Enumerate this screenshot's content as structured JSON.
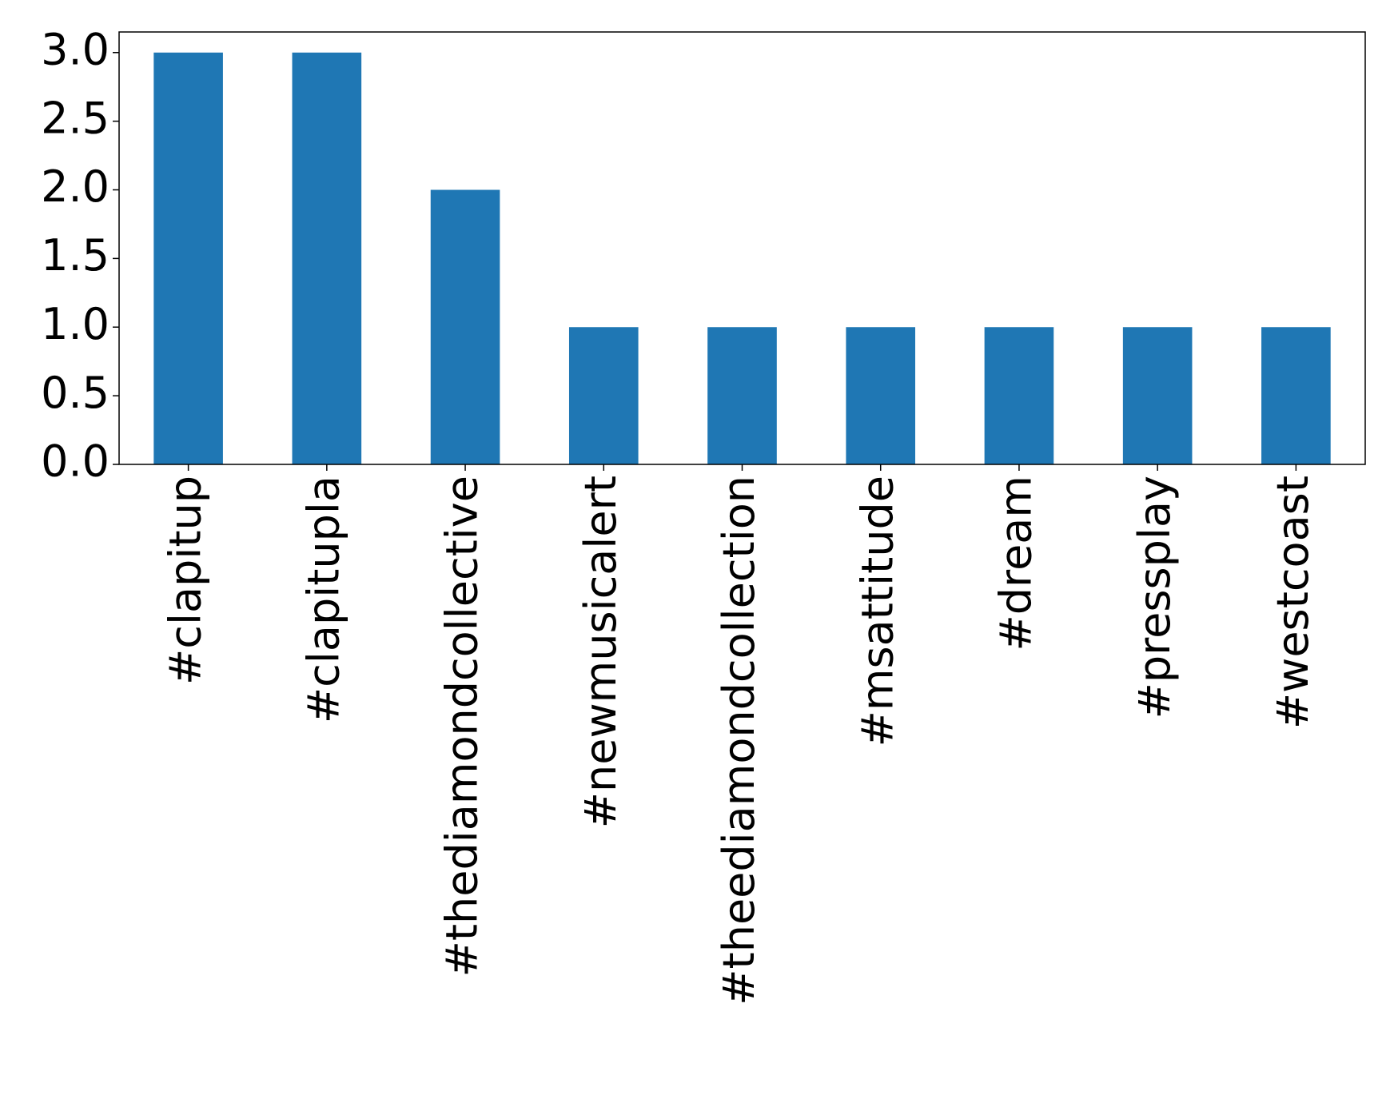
{
  "chart_data": {
    "type": "bar",
    "categories": [
      "#clapitup",
      "#clapitupla",
      "#thediamondcollective",
      "#newmusicalert",
      "#theediamondcollection",
      "#msattitude",
      "#dream",
      "#pressplay",
      "#westcoast"
    ],
    "values": [
      3,
      3,
      2,
      1,
      1,
      1,
      1,
      1,
      1
    ],
    "color": "#1f77b4",
    "ylim": [
      0,
      3.15
    ],
    "yticks": [
      {
        "value": 0,
        "label": "0.0"
      },
      {
        "value": 0.5,
        "label": "0.5"
      },
      {
        "value": 1,
        "label": "1.0"
      },
      {
        "value": 1.5,
        "label": "1.5"
      },
      {
        "value": 2,
        "label": "2.0"
      },
      {
        "value": 2.5,
        "label": "2.5"
      },
      {
        "value": 3,
        "label": "3.0"
      }
    ],
    "grid": false
  }
}
